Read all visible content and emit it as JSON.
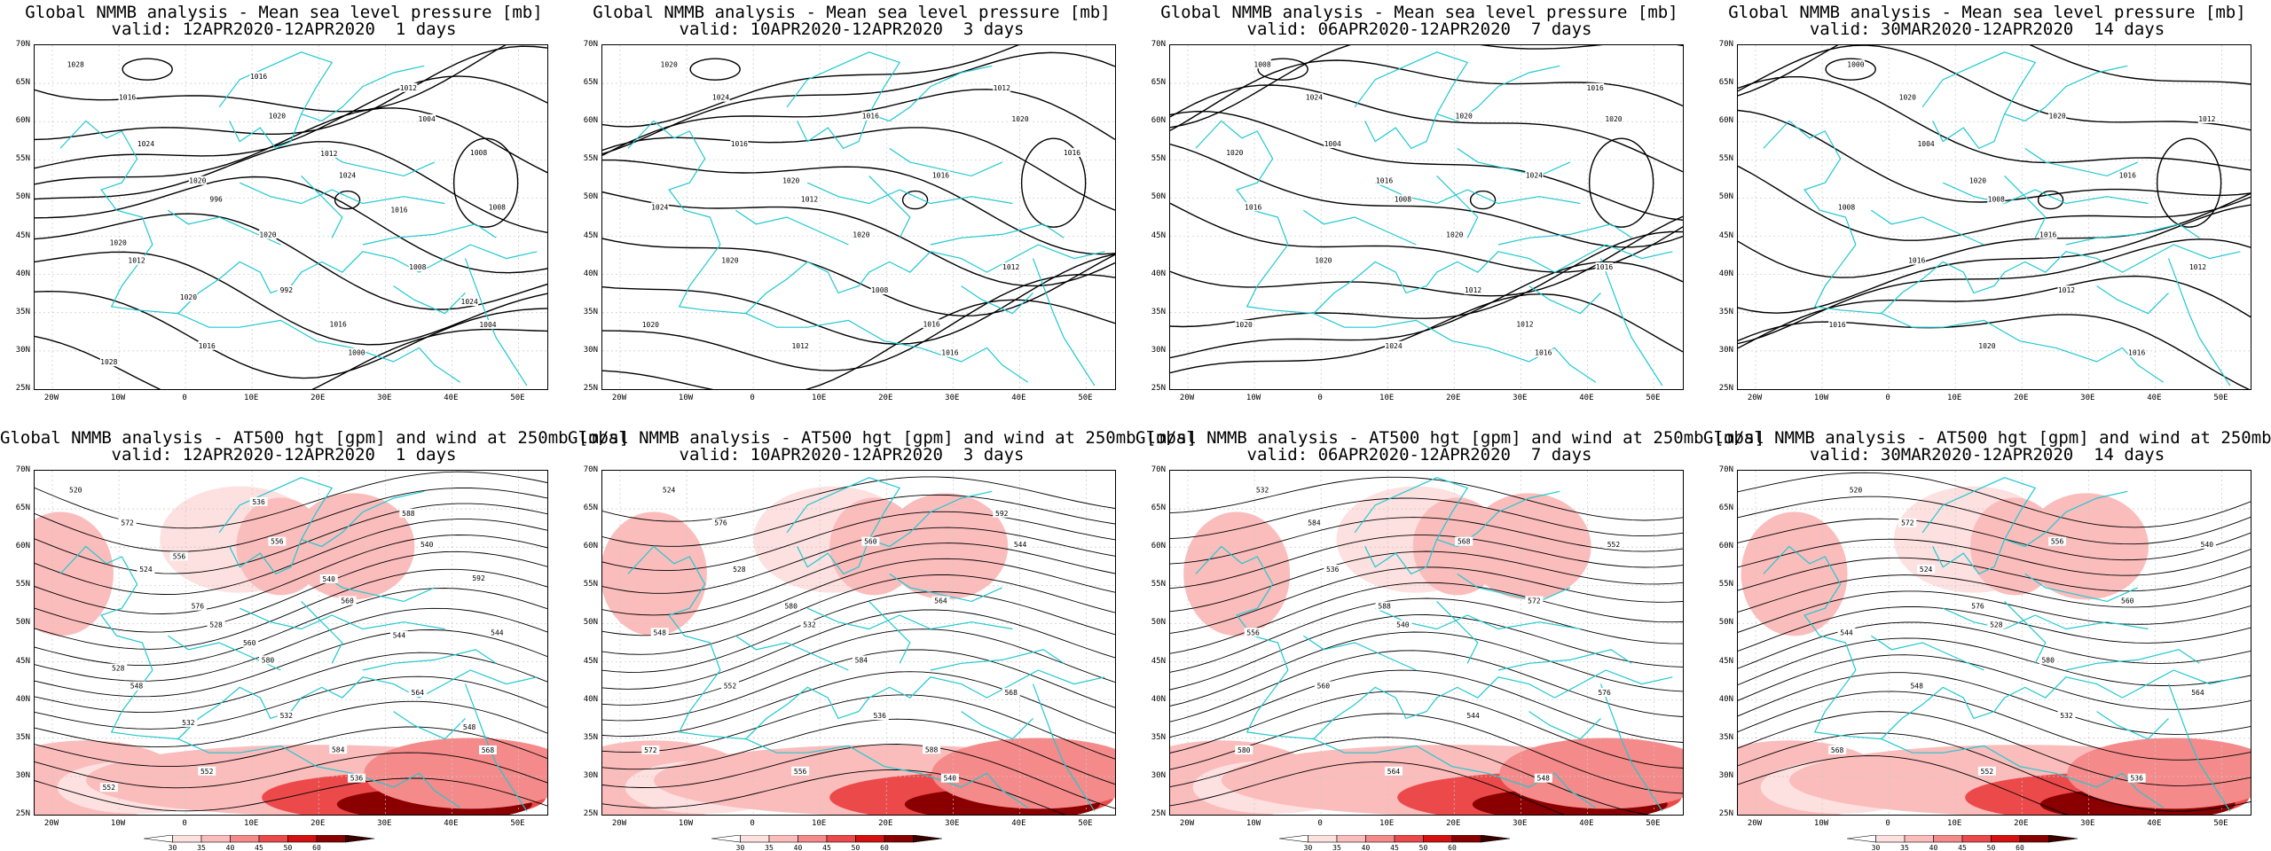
{
  "panels": [
    {
      "title1": "Global NMMB analysis - Mean sea level pressure [mb]",
      "title2": "valid: 12APR2020-12APR2020  1 days",
      "type": "mslp",
      "labels": [
        "1028",
        "1024",
        "996",
        "992",
        "1000",
        "1004",
        "1008",
        "1012",
        "1016",
        "1020",
        "1024",
        "1008",
        "1004",
        "1016",
        "1020",
        "1020",
        "1016",
        "1012",
        "1008",
        "1020",
        "1020",
        "1016",
        "1012",
        "1016",
        "1024",
        "1028"
      ]
    },
    {
      "title1": "Global NMMB analysis - Mean sea level pressure [mb]",
      "title2": "valid: 10APR2020-12APR2020  3 days",
      "type": "mslp",
      "labels": [
        "1020",
        "1016",
        "1012",
        "1008",
        "1016",
        "1020",
        "1024",
        "1020",
        "1012",
        "1016",
        "1016",
        "1012",
        "1020",
        "1024",
        "1020",
        "1020",
        "1016",
        "1012",
        "1016"
      ]
    },
    {
      "title1": "Global NMMB analysis - Mean sea level pressure [mb]",
      "title2": "valid: 06APR2020-12APR2020  7 days",
      "type": "mslp",
      "labels": [
        "1008",
        "1004",
        "1008",
        "1012",
        "1016",
        "1020",
        "1016",
        "1020",
        "1024",
        "1020",
        "1024",
        "1016",
        "1020",
        "1024",
        "1016",
        "1020",
        "1012",
        "1016",
        "1020"
      ]
    },
    {
      "title1": "Global NMMB analysis - Mean sea level pressure [mb]",
      "title2": "valid: 30MAR2020-12APR2020  14 days",
      "type": "mslp",
      "labels": [
        "1000",
        "1004",
        "1008",
        "1012",
        "1016",
        "1012",
        "1008",
        "1016",
        "1020",
        "1020",
        "1016",
        "1012",
        "1016",
        "1020",
        "1020",
        "1016"
      ]
    },
    {
      "title1": "Global NMMB analysis - AT500 hgt [gpm] and wind at 250mb [m/s]",
      "title2": "valid: 12APR2020-12APR2020  1 days",
      "type": "z500",
      "labels": [
        "520",
        "524",
        "528",
        "532",
        "536",
        "540",
        "544",
        "548",
        "552",
        "556",
        "560",
        "564",
        "568",
        "572",
        "576",
        "580",
        "584",
        "588",
        "592",
        "528",
        "532",
        "536",
        "540",
        "544",
        "548",
        "552",
        "556",
        "560"
      ]
    },
    {
      "title1": "Global NMMB analysis - AT500 hgt [gpm] and wind at 250mb [m/s]",
      "title2": "valid: 10APR2020-12APR2020  3 days",
      "type": "z500",
      "labels": [
        "524",
        "528",
        "532",
        "536",
        "540",
        "544",
        "548",
        "552",
        "556",
        "560",
        "564",
        "568",
        "572",
        "576",
        "580",
        "584",
        "588",
        "592"
      ]
    },
    {
      "title1": "Global NMMB analysis - AT500 hgt [gpm] and wind at 250mb [m/s]",
      "title2": "valid: 06APR2020-12APR2020  7 days",
      "type": "z500",
      "labels": [
        "532",
        "536",
        "540",
        "544",
        "548",
        "552",
        "556",
        "560",
        "564",
        "568",
        "572",
        "576",
        "580",
        "584",
        "588"
      ]
    },
    {
      "title1": "Global NMMB analysis - AT500 hgt [gpm] and wind at 250mb [m/s]",
      "title2": "valid: 30MAR2020-12APR2020  14 days",
      "type": "z500",
      "labels": [
        "520",
        "524",
        "528",
        "532",
        "536",
        "540",
        "544",
        "548",
        "552",
        "556",
        "560",
        "564",
        "568",
        "572",
        "576",
        "580"
      ]
    }
  ],
  "lat_labels": [
    "70N",
    "65N",
    "60N",
    "55N",
    "50N",
    "45N",
    "40N",
    "35N",
    "30N",
    "25N"
  ],
  "lon_labels": [
    "20W",
    "10W",
    "0",
    "10E",
    "20E",
    "30E",
    "40E",
    "50E"
  ],
  "colorbar": {
    "ticks": [
      "30",
      "35",
      "40",
      "45",
      "50",
      "60"
    ],
    "colors": [
      "#ffffff",
      "#fde0e0",
      "#fbbcbc",
      "#f58a8a",
      "#ec4a4a",
      "#d41010",
      "#8a0000",
      "#3a0000"
    ]
  },
  "colors": {
    "coast": "#20c8d0",
    "contour": "#000000",
    "grid": "#c8c8c8"
  }
}
